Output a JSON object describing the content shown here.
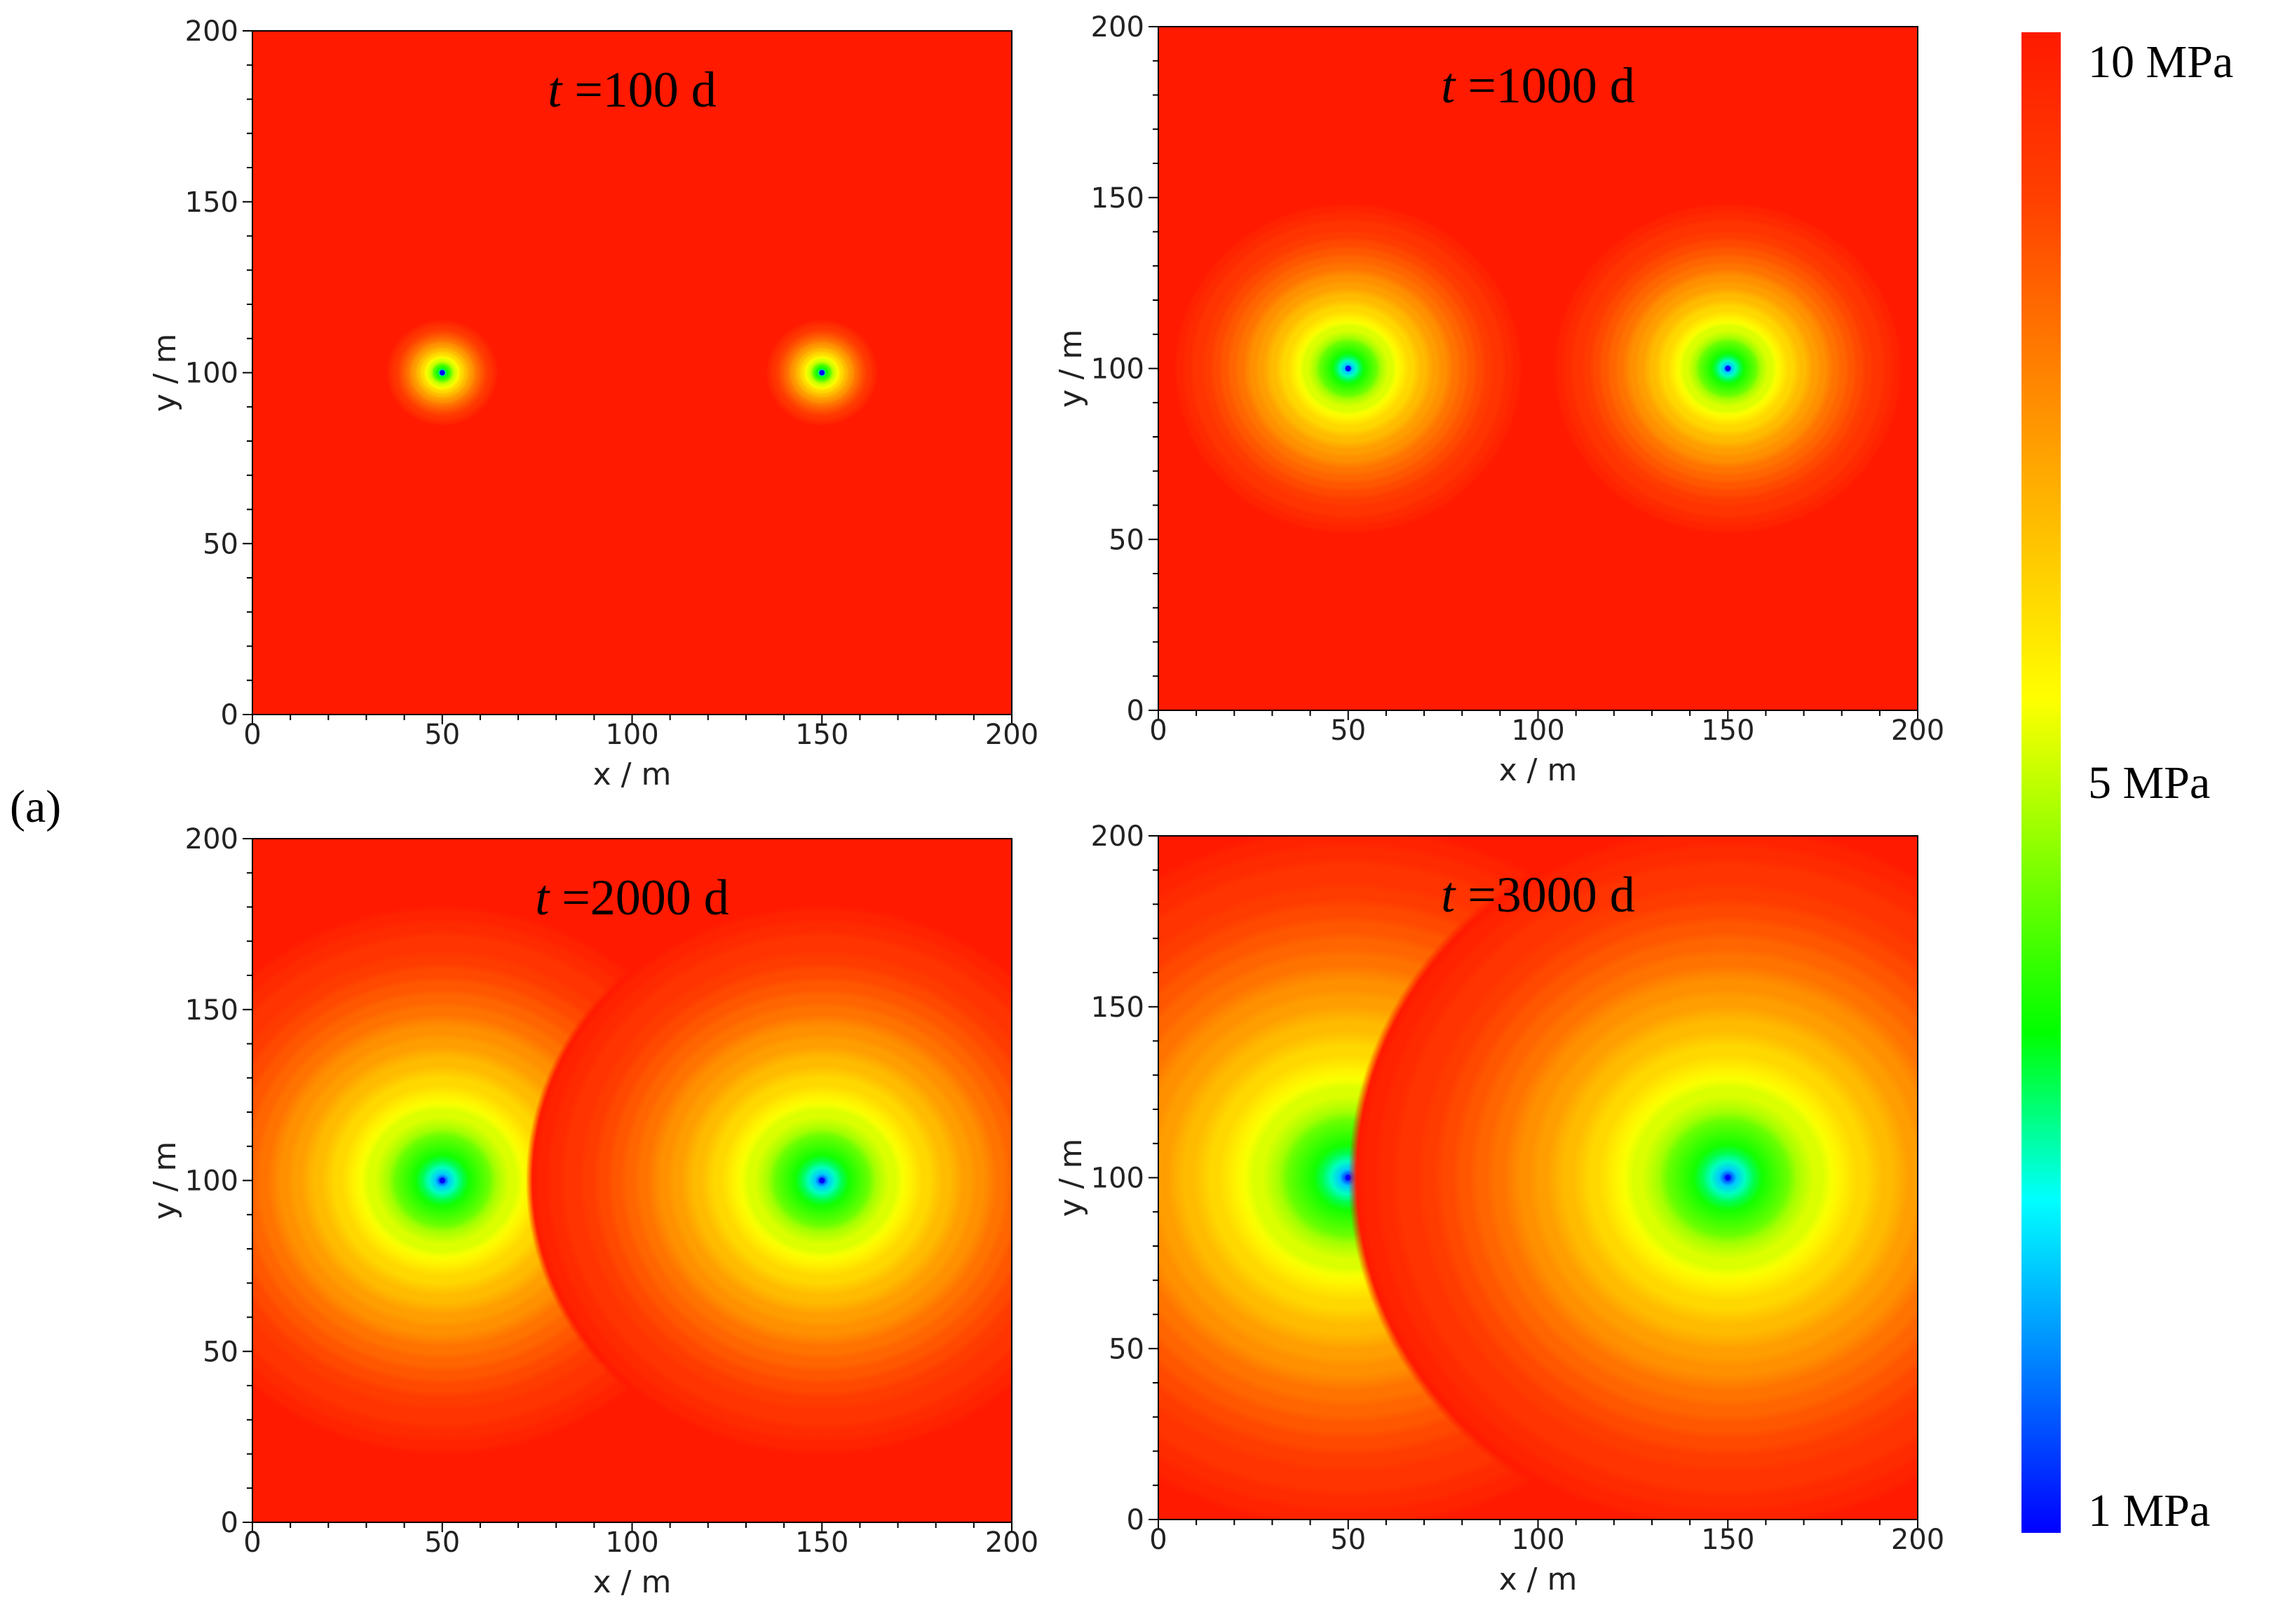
{
  "figure_label": "(a)",
  "colormap": {
    "stops": [
      "#0000ff",
      "#0080ff",
      "#00ffff",
      "#00ff00",
      "#80ff00",
      "#ffff00",
      "#ffc000",
      "#ff8000",
      "#ff4000",
      "#ff1a00"
    ],
    "levels": 40
  },
  "colorbar": {
    "top_label": "10 MPa",
    "mid_label": "5 MPa",
    "bottom_label": "1 MPa",
    "min": 1,
    "max": 10
  },
  "chart_data": [
    {
      "type": "heatmap",
      "title_var": "t",
      "title_text": "=100 d",
      "time_days": 100,
      "xlabel": "x / m",
      "ylabel": "y / m",
      "xlim": [
        0,
        200
      ],
      "ylim": [
        0,
        200
      ],
      "xticks": [
        "0",
        "50",
        "100",
        "150",
        "200"
      ],
      "yticks": [
        "0",
        "50",
        "100",
        "150",
        "200"
      ],
      "wells": [
        {
          "x": 50,
          "y": 100
        },
        {
          "x": 150,
          "y": 100
        }
      ],
      "well_pressure_mpa": 1,
      "initial_pressure_mpa": 10,
      "drawdown_radius_m": 15
    },
    {
      "type": "heatmap",
      "title_var": "t",
      "title_text": "=1000 d",
      "time_days": 1000,
      "xlabel": "x / m",
      "ylabel": "y / m",
      "xlim": [
        0,
        200
      ],
      "ylim": [
        0,
        200
      ],
      "xticks": [
        "0",
        "50",
        "100",
        "150",
        "200"
      ],
      "yticks": [
        "0",
        "50",
        "100",
        "150",
        "200"
      ],
      "wells": [
        {
          "x": 50,
          "y": 100
        },
        {
          "x": 150,
          "y": 100
        }
      ],
      "well_pressure_mpa": 1,
      "initial_pressure_mpa": 10,
      "drawdown_radius_m": 47
    },
    {
      "type": "heatmap",
      "title_var": "t",
      "title_text": "=2000 d",
      "time_days": 2000,
      "xlabel": "x / m",
      "ylabel": "y / m",
      "xlim": [
        0,
        200
      ],
      "ylim": [
        0,
        200
      ],
      "xticks": [
        "0",
        "50",
        "100",
        "150",
        "200"
      ],
      "yticks": [
        "0",
        "50",
        "100",
        "150",
        "200"
      ],
      "wells": [
        {
          "x": 50,
          "y": 100
        },
        {
          "x": 150,
          "y": 100
        }
      ],
      "well_pressure_mpa": 1,
      "initial_pressure_mpa": 10,
      "drawdown_radius_m": 78
    },
    {
      "type": "heatmap",
      "title_var": "t",
      "title_text": "=3000 d",
      "time_days": 3000,
      "xlabel": "x / m",
      "ylabel": "y / m",
      "xlim": [
        0,
        200
      ],
      "ylim": [
        0,
        200
      ],
      "xticks": [
        "0",
        "50",
        "100",
        "150",
        "200"
      ],
      "yticks": [
        "0",
        "50",
        "100",
        "150",
        "200"
      ],
      "wells": [
        {
          "x": 50,
          "y": 100
        },
        {
          "x": 150,
          "y": 100
        }
      ],
      "well_pressure_mpa": 1,
      "initial_pressure_mpa": 10,
      "drawdown_radius_m": 100
    }
  ]
}
